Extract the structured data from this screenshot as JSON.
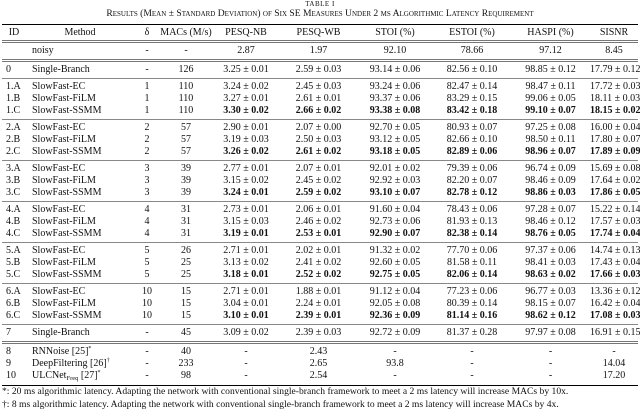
{
  "table_label": "TABLE I",
  "caption": "Results (Mean ± Standard Deviation) of Six SE Measures Under 2 ms Algorithmic Latency Requirement",
  "headers": [
    "ID",
    "Method",
    "δ",
    "MACs (M/s)",
    "PESQ-NB",
    "PESQ-WB",
    "STOI (%)",
    "ESTOI (%)",
    "HASPI (%)",
    "SISNR"
  ],
  "groups": [
    [
      {
        "id": "",
        "method": "noisy",
        "delta": "-",
        "macs": "-",
        "values": [
          "2.87",
          "1.97",
          "92.10",
          "78.66",
          "97.12",
          "8.45"
        ],
        "bold": false
      }
    ],
    [
      {
        "id": "0",
        "method": "Single-Branch",
        "delta": "-",
        "macs": "126",
        "values": [
          "3.25 ± 0.01",
          "2.59 ± 0.03",
          "93.14 ± 0.06",
          "82.56 ± 0.10",
          "98.85 ± 0.12",
          "17.79 ± 0.12"
        ],
        "bold": false
      }
    ],
    [
      {
        "id": "1.A",
        "method": "SlowFast-EC",
        "delta": "1",
        "macs": "110",
        "values": [
          "3.24 ± 0.02",
          "2.45 ± 0.03",
          "93.24 ± 0.06",
          "82.47 ± 0.14",
          "98.47 ± 0.11",
          "17.72 ± 0.03"
        ],
        "bold": false
      },
      {
        "id": "1.B",
        "method": "SlowFast-FiLM",
        "delta": "1",
        "macs": "110",
        "values": [
          "3.27 ± 0.01",
          "2.61 ± 0.01",
          "93.37 ± 0.06",
          "83.29 ± 0.15",
          "99.06 ± 0.05",
          "18.11 ± 0.03"
        ],
        "bold": false
      },
      {
        "id": "1.C",
        "method": "SlowFast-SSMM",
        "delta": "1",
        "macs": "110",
        "values": [
          "3.30 ± 0.02",
          "2.66 ± 0.02",
          "93.38 ± 0.08",
          "83.42 ± 0.18",
          "99.10 ± 0.07",
          "18.15 ± 0.02"
        ],
        "bold": true
      }
    ],
    [
      {
        "id": "2.A",
        "method": "SlowFast-EC",
        "delta": "2",
        "macs": "57",
        "values": [
          "2.90 ± 0.01",
          "2.07 ± 0.00",
          "92.70 ± 0.05",
          "80.93 ± 0.07",
          "97.25 ± 0.08",
          "16.00 ± 0.04"
        ],
        "bold": false
      },
      {
        "id": "2.B",
        "method": "SlowFast-FiLM",
        "delta": "2",
        "macs": "57",
        "values": [
          "3.19 ± 0.03",
          "2.50 ± 0.03",
          "93.12 ± 0.05",
          "82.66 ± 0.10",
          "98.50 ± 0.11",
          "17.80 ± 0.07"
        ],
        "bold": false
      },
      {
        "id": "2.C",
        "method": "SlowFast-SSMM",
        "delta": "2",
        "macs": "57",
        "values": [
          "3.26 ± 0.02",
          "2.61 ± 0.02",
          "93.18 ± 0.05",
          "82.89 ± 0.06",
          "98.96 ± 0.07",
          "17.89 ± 0.09"
        ],
        "bold": true
      }
    ],
    [
      {
        "id": "3.A",
        "method": "SlowFast-EC",
        "delta": "3",
        "macs": "39",
        "values": [
          "2.77 ± 0.01",
          "2.07 ± 0.01",
          "92.01 ± 0.02",
          "79.39 ± 0.06",
          "96.74 ± 0.09",
          "15.69 ± 0.08"
        ],
        "bold": false
      },
      {
        "id": "3.B",
        "method": "SlowFast-FiLM",
        "delta": "3",
        "macs": "39",
        "values": [
          "3.15 ± 0.02",
          "2.45 ± 0.02",
          "92.92 ± 0.03",
          "82.20 ± 0.07",
          "98.46 ± 0.09",
          "17.64 ± 0.02"
        ],
        "bold": false
      },
      {
        "id": "3.C",
        "method": "SlowFast-SSMM",
        "delta": "3",
        "macs": "39",
        "values": [
          "3.24 ± 0.01",
          "2.59 ± 0.02",
          "93.10 ± 0.07",
          "82.78 ± 0.12",
          "98.86 ± 0.03",
          "17.86 ± 0.05"
        ],
        "bold": true
      }
    ],
    [
      {
        "id": "4.A",
        "method": "SlowFast-EC",
        "delta": "4",
        "macs": "31",
        "values": [
          "2.73 ± 0.01",
          "2.06 ± 0.01",
          "91.60 ± 0.04",
          "78.43 ± 0.06",
          "97.28 ± 0.07",
          "15.22 ± 0.14"
        ],
        "bold": false
      },
      {
        "id": "4.B",
        "method": "SlowFast-FiLM",
        "delta": "4",
        "macs": "31",
        "values": [
          "3.15 ± 0.03",
          "2.46 ± 0.02",
          "92.73 ± 0.06",
          "81.93 ± 0.13",
          "98.46 ± 0.12",
          "17.57 ± 0.03"
        ],
        "bold": false
      },
      {
        "id": "4.C",
        "method": "SlowFast-SSMM",
        "delta": "4",
        "macs": "31",
        "values": [
          "3.19 ± 0.01",
          "2.53 ± 0.01",
          "92.90 ± 0.07",
          "82.38 ± 0.14",
          "98.76 ± 0.05",
          "17.74 ± 0.04"
        ],
        "bold": true
      }
    ],
    [
      {
        "id": "5.A",
        "method": "SlowFast-EC",
        "delta": "5",
        "macs": "26",
        "values": [
          "2.71 ± 0.01",
          "2.02 ± 0.01",
          "91.32 ± 0.02",
          "77.70 ± 0.06",
          "97.37 ± 0.06",
          "14.74 ± 0.13"
        ],
        "bold": false
      },
      {
        "id": "5.B",
        "method": "SlowFast-FiLM",
        "delta": "5",
        "macs": "25",
        "values": [
          "3.13 ± 0.02",
          "2.41 ± 0.02",
          "92.60 ± 0.05",
          "81.58 ± 0.11",
          "98.41 ± 0.03",
          "17.43 ± 0.04"
        ],
        "bold": false
      },
      {
        "id": "5.C",
        "method": "SlowFast-SSMM",
        "delta": "5",
        "macs": "25",
        "values": [
          "3.18 ± 0.01",
          "2.52 ± 0.02",
          "92.75 ± 0.05",
          "82.06 ± 0.14",
          "98.63 ± 0.02",
          "17.66 ± 0.03"
        ],
        "bold": true
      }
    ],
    [
      {
        "id": "6.A",
        "method": "SlowFast-EC",
        "delta": "10",
        "macs": "15",
        "values": [
          "2.71 ± 0.01",
          "1.88 ± 0.01",
          "91.12 ± 0.04",
          "77.23 ± 0.06",
          "96.77 ± 0.03",
          "13.36 ± 0.12"
        ],
        "bold": false
      },
      {
        "id": "6.B",
        "method": "SlowFast-FiLM",
        "delta": "10",
        "macs": "15",
        "values": [
          "3.04 ± 0.01",
          "2.24 ± 0.01",
          "92.05 ± 0.08",
          "80.39 ± 0.14",
          "98.15 ± 0.07",
          "16.42 ± 0.04"
        ],
        "bold": false
      },
      {
        "id": "6.C",
        "method": "SlowFast-SSMM",
        "delta": "10",
        "macs": "15",
        "values": [
          "3.10 ± 0.01",
          "2.39 ± 0.01",
          "92.36 ± 0.09",
          "81.14 ± 0.16",
          "98.62 ± 0.12",
          "17.08 ± 0.03"
        ],
        "bold": true
      }
    ],
    [
      {
        "id": "7",
        "method": "Single-Branch",
        "delta": "-",
        "macs": "45",
        "values": [
          "3.09 ± 0.02",
          "2.39 ± 0.03",
          "92.72 ± 0.09",
          "81.37 ± 0.28",
          "97.97 ± 0.08",
          "16.91 ± 0.15"
        ],
        "bold": false
      }
    ],
    [
      {
        "id": "8",
        "method": "RNNoise",
        "sub": "",
        "cite": " [25]",
        "mark": "*",
        "delta": "-",
        "macs": "40",
        "values": [
          "-",
          "2.43",
          "-",
          "-",
          "-",
          "-"
        ],
        "bold": false
      },
      {
        "id": "9",
        "method": "DeepFiltering",
        "sub": "",
        "cite": " [26]",
        "mark": "†",
        "delta": "-",
        "macs": "233",
        "values": [
          "-",
          "2.65",
          "93.8",
          "-",
          "-",
          "14.04"
        ],
        "bold": false
      },
      {
        "id": "10",
        "method": "ULCNet",
        "sub": "Freq",
        "cite": " [27]",
        "mark": "*",
        "delta": "-",
        "macs": "98",
        "values": [
          "-",
          "2.54",
          "-",
          "-",
          "-",
          "17.20"
        ],
        "bold": false
      }
    ]
  ],
  "footnotes": [
    "*: 20 ms algorithmic latency. Adapting the network with conventional single-branch framework to meet a 2 ms latency will increase MACs by 10x.",
    "†: 8 ms algorithmic latency. Adapting the network with conventional single-branch framework to meet a 2 ms latency will increase MACs by 4x."
  ]
}
